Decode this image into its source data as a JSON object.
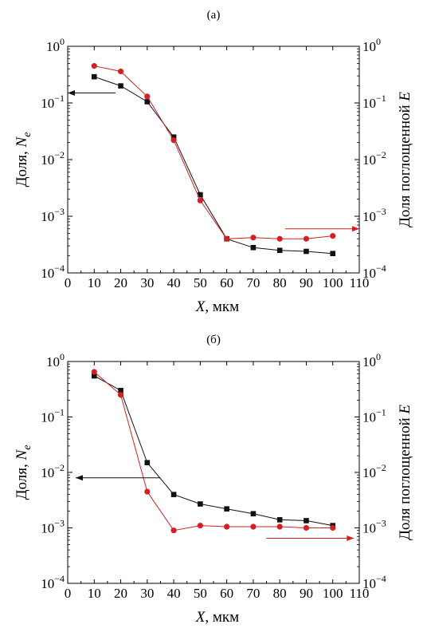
{
  "chart_data": [
    {
      "panel_label": "(а)",
      "type": "line",
      "x": [
        10,
        20,
        30,
        40,
        50,
        60,
        70,
        80,
        90,
        100
      ],
      "xlim": [
        0,
        110
      ],
      "x_ticks": [
        "0",
        "10",
        "20",
        "30",
        "40",
        "50",
        "60",
        "70",
        "80",
        "90",
        "100",
        "110"
      ],
      "x_tick_values": [
        0,
        10,
        20,
        30,
        40,
        50,
        60,
        70,
        80,
        90,
        100,
        110
      ],
      "xlabel_var": "X",
      "xlabel_unit": ", мкм",
      "ylabel_left_prefix": "Доля, ",
      "ylabel_left_var": "N",
      "ylabel_left_sub": "e",
      "ylabel_right_prefix": "Доля поглощенной ",
      "ylabel_right_var": "E",
      "yscale": "log",
      "ylim": [
        0.0001,
        1
      ],
      "y_ticks": [
        {
          "base": "10",
          "exp": "0"
        },
        {
          "base": "10",
          "exp": "−1"
        },
        {
          "base": "10",
          "exp": "−2"
        },
        {
          "base": "10",
          "exp": "−3"
        },
        {
          "base": "10",
          "exp": "−4"
        }
      ],
      "series": [
        {
          "axis": "left",
          "color": "#111111",
          "marker": "square",
          "values": [
            0.29,
            0.2,
            0.105,
            0.025,
            0.0024,
            0.0004,
            0.00028,
            0.00025,
            0.00024,
            0.00022
          ]
        },
        {
          "axis": "right",
          "color": "#d42020",
          "marker": "circle",
          "values": [
            0.45,
            0.36,
            0.13,
            0.022,
            0.0019,
            0.0004,
            0.00042,
            0.0004,
            0.0004,
            0.00045
          ]
        }
      ],
      "arrows": [
        {
          "direction": "left",
          "color": "#111111",
          "x_from": 18,
          "x_to": 0,
          "y": 0.15
        },
        {
          "direction": "right",
          "color": "#d42020",
          "x_from": 82,
          "x_to": 110,
          "y": 0.0006
        }
      ]
    },
    {
      "panel_label": "(б)",
      "type": "line",
      "x": [
        10,
        20,
        30,
        40,
        50,
        60,
        70,
        80,
        90,
        100
      ],
      "xlim": [
        0,
        110
      ],
      "x_ticks": [
        "0",
        "10",
        "20",
        "30",
        "40",
        "50",
        "60",
        "70",
        "80",
        "90",
        "100",
        "110"
      ],
      "x_tick_values": [
        0,
        10,
        20,
        30,
        40,
        50,
        60,
        70,
        80,
        90,
        100,
        110
      ],
      "xlabel_var": "X",
      "xlabel_unit": ", мкм",
      "ylabel_left_prefix": "Доля, ",
      "ylabel_left_var": "N",
      "ylabel_left_sub": "e",
      "ylabel_right_prefix": "Доля поглощенной ",
      "ylabel_right_var": "E",
      "yscale": "log",
      "ylim": [
        0.0001,
        1
      ],
      "y_ticks": [
        {
          "base": "10",
          "exp": "0"
        },
        {
          "base": "10",
          "exp": "−1"
        },
        {
          "base": "10",
          "exp": "−2"
        },
        {
          "base": "10",
          "exp": "−3"
        },
        {
          "base": "10",
          "exp": "−4"
        }
      ],
      "series": [
        {
          "axis": "left",
          "color": "#111111",
          "marker": "square",
          "values": [
            0.55,
            0.3,
            0.015,
            0.004,
            0.0027,
            0.0022,
            0.0018,
            0.0014,
            0.00135,
            0.0011
          ]
        },
        {
          "axis": "right",
          "color": "#d42020",
          "marker": "circle",
          "values": [
            0.65,
            0.25,
            0.0045,
            0.0009,
            0.0011,
            0.00105,
            0.00105,
            0.00105,
            0.001,
            0.001
          ]
        }
      ],
      "arrows": [
        {
          "direction": "left",
          "color": "#111111",
          "x_from": 35,
          "x_to": 3,
          "y": 0.008
        },
        {
          "direction": "right",
          "color": "#d42020",
          "x_from": 75,
          "x_to": 108,
          "y": 0.00065
        }
      ]
    }
  ]
}
